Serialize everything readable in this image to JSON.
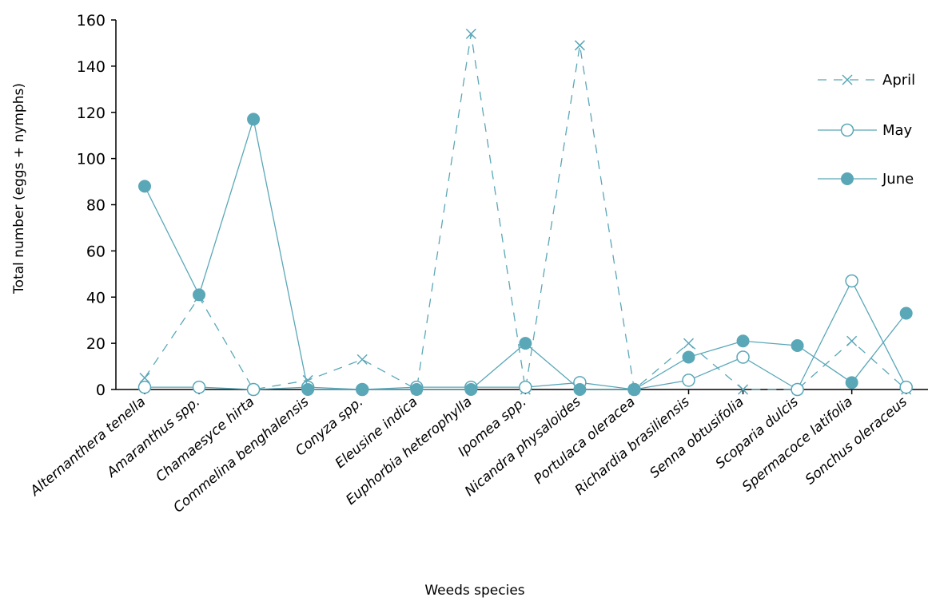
{
  "chart_data": {
    "type": "line",
    "xlabel": "Weeds species",
    "ylabel": "Total number (eggs + nymphs)",
    "ylim": [
      0,
      160
    ],
    "yticks": [
      0,
      20,
      40,
      60,
      80,
      100,
      120,
      140,
      160
    ],
    "grid": false,
    "legend_position": "top-right",
    "color": "#5aa7b8",
    "categories": [
      "Alternanthera tenella",
      "Amaranthus spp.",
      "Chamaesyce hirta",
      "Commelina benghalensis",
      "Conyza spp.",
      "Eleusine indica",
      "Euphorbia heterophylla",
      "Ipomea spp.",
      "Nicandra physaloides",
      "Portulaca oleracea",
      "Richardia brasiliensis",
      "Senna obtusifolia",
      "Scoparia dulcis",
      "Spermacoce latifolia",
      "Sonchus oleraceus"
    ],
    "series": [
      {
        "name": "April",
        "marker": "x",
        "line": "dashed",
        "values": [
          5,
          40,
          0,
          4,
          13,
          0,
          154,
          0,
          149,
          0,
          20,
          0,
          0,
          21,
          0
        ]
      },
      {
        "name": "May",
        "marker": "open-circle",
        "line": "solid",
        "values": [
          1,
          1,
          0,
          1,
          0,
          1,
          1,
          1,
          3,
          0,
          4,
          14,
          0,
          47,
          1
        ]
      },
      {
        "name": "June",
        "marker": "filled-circle",
        "line": "solid",
        "values": [
          88,
          41,
          117,
          0,
          0,
          0,
          0,
          20,
          0,
          0,
          14,
          21,
          19,
          3,
          33
        ]
      }
    ]
  }
}
